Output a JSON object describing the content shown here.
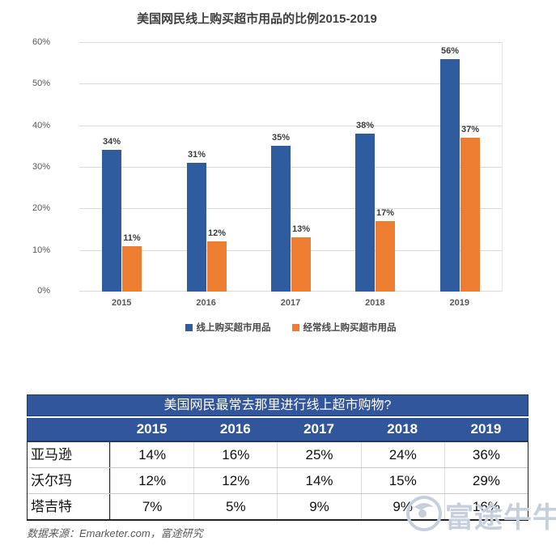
{
  "chart_data": [
    {
      "type": "bar",
      "title": "美国网民线上购买超市用品的比例2015-2019",
      "categories": [
        "2015",
        "2016",
        "2017",
        "2018",
        "2019"
      ],
      "series": [
        {
          "name": "线上购买超市用品",
          "color": "#2E5C9E",
          "values": [
            34,
            31,
            35,
            38,
            56
          ]
        },
        {
          "name": "经常线上购买超市用品",
          "color": "#ED7D31",
          "values": [
            11,
            12,
            13,
            17,
            37
          ]
        }
      ],
      "data_label_format": "percent",
      "xlabel": "",
      "ylabel": "",
      "ylim": [
        0,
        60
      ],
      "y_tick_labels": [
        "0%",
        "10%",
        "20%",
        "30%",
        "40%",
        "50%",
        "60%"
      ],
      "grid": "horizontal",
      "legend_position": "bottom"
    },
    {
      "type": "table",
      "title": "美国网民最常去那里进行线上超市购物?",
      "columns": [
        "2015",
        "2016",
        "2017",
        "2018",
        "2019"
      ],
      "rows": [
        {
          "label": "亚马逊",
          "values": [
            "14%",
            "16%",
            "25%",
            "24%",
            "36%"
          ]
        },
        {
          "label": "沃尔玛",
          "values": [
            "12%",
            "12%",
            "14%",
            "15%",
            "29%"
          ]
        },
        {
          "label": "塔吉特",
          "values": [
            "7%",
            "5%",
            "9%",
            "9%",
            "16%"
          ]
        }
      ],
      "header_bg": "#31569B",
      "header_text_color": "#FFFFFF"
    }
  ],
  "footer": {
    "source": "数据来源：Emarketer.com，富途研究"
  },
  "watermark": {
    "text": "富途牛牛",
    "color": "#C6D0DC"
  },
  "colors": {
    "bar_blue": "#2E5C9E",
    "bar_orange": "#ED7D31",
    "table_header_blue": "#31569B",
    "gridline": "#D9D9D9",
    "axis_text": "#595959"
  }
}
